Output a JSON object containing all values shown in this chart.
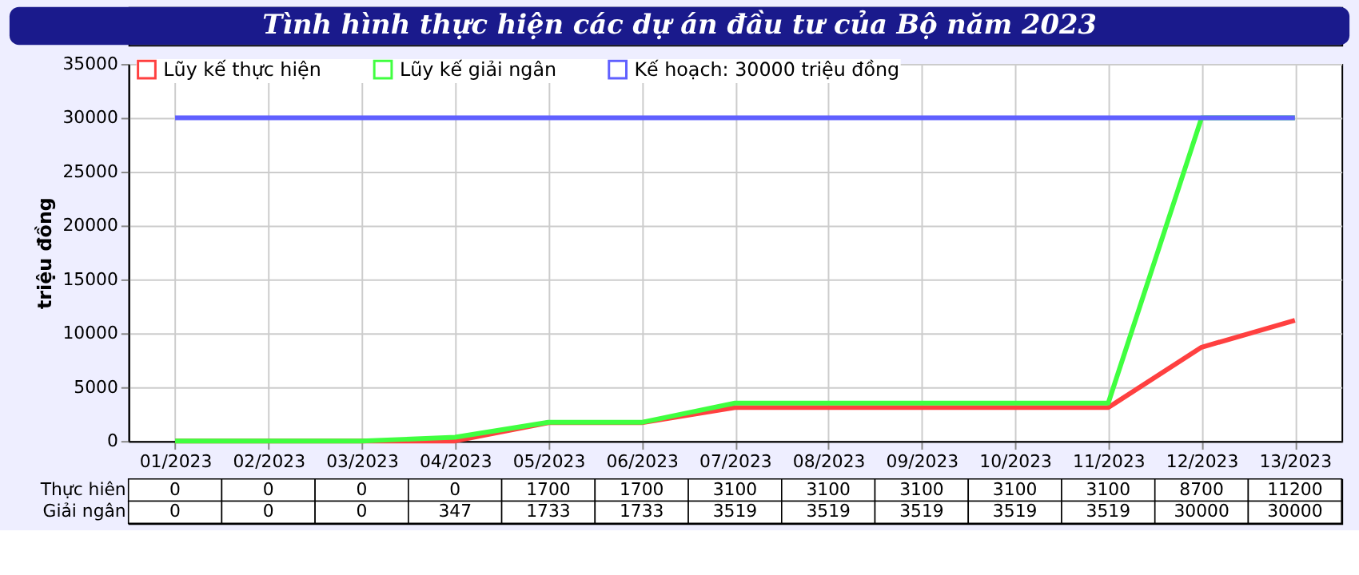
{
  "chart_data": {
    "type": "line",
    "title": "Tình hình thực hiện các dự án đầu tư của Bộ năm 2023",
    "ylabel": "triệu đồng",
    "categories": [
      "01/2023",
      "02/2023",
      "03/2023",
      "04/2023",
      "05/2023",
      "06/2023",
      "07/2023",
      "08/2023",
      "09/2023",
      "10/2023",
      "11/2023",
      "12/2023",
      "13/2023"
    ],
    "series": [
      {
        "name": "Lũy kế thực hiện",
        "color": "#ff4040",
        "values": [
          0,
          0,
          0,
          0,
          1700,
          1700,
          3100,
          3100,
          3100,
          3100,
          3100,
          8700,
          11200
        ],
        "value_labels": [
          "0",
          "0",
          "0",
          "0",
          "1700",
          "1700",
          "3100",
          "3100",
          "3100",
          "3100",
          "3100",
          "8700",
          "11200"
        ]
      },
      {
        "name": "Lũy kế giải ngân",
        "color": "#40ff40",
        "values": [
          0,
          0,
          0,
          347,
          1733,
          1733,
          3519,
          3519,
          3519,
          3519,
          3519,
          30000,
          30000
        ],
        "value_labels": [
          "0",
          "0",
          "0",
          "347",
          "1733",
          "1733",
          "3519",
          "3519",
          "3519",
          "3519",
          "3519",
          "30000",
          "30000"
        ]
      },
      {
        "name": "Kế hoạch: 30000 triệu đồng",
        "color": "#6060ff",
        "values": [
          30000,
          30000,
          30000,
          30000,
          30000,
          30000,
          30000,
          30000,
          30000,
          30000,
          30000,
          30000,
          30000
        ]
      }
    ],
    "annotations": [
      "Thực hiên",
      "Giải ngân"
    ],
    "ylim": [
      0,
      35000
    ],
    "yticks": [
      0,
      5000,
      10000,
      15000,
      20000,
      25000,
      30000,
      35000
    ],
    "grid": true,
    "legend": "top left",
    "line_style": "solid",
    "marker": "none"
  }
}
